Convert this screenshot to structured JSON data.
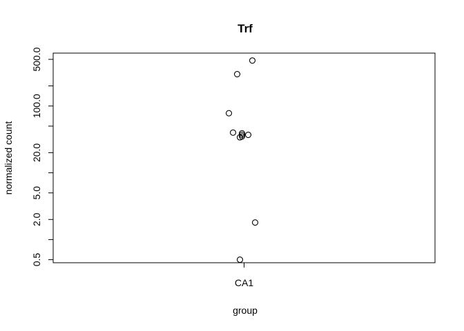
{
  "chart_data": {
    "type": "scatter",
    "title": "Trf",
    "xlabel": "group",
    "ylabel": "normalized count",
    "categories": [
      "CA1"
    ],
    "y_scale": "log",
    "ylim": [
      0.45,
      620
    ],
    "y_ticks": [
      0.5,
      1,
      2,
      5,
      10,
      20,
      50,
      100,
      200,
      500
    ],
    "y_tick_labels": [
      "0.5",
      "",
      "2.0",
      "5.0",
      "",
      "20.0",
      "",
      "100.0",
      "",
      "500.0"
    ],
    "grid": false,
    "legend": "none",
    "marker": "open-circle",
    "series": [
      {
        "category": "CA1",
        "values": [
          480,
          300,
          78,
          40,
          39,
          37,
          37,
          35,
          34,
          1.8,
          0.5
        ]
      }
    ]
  }
}
